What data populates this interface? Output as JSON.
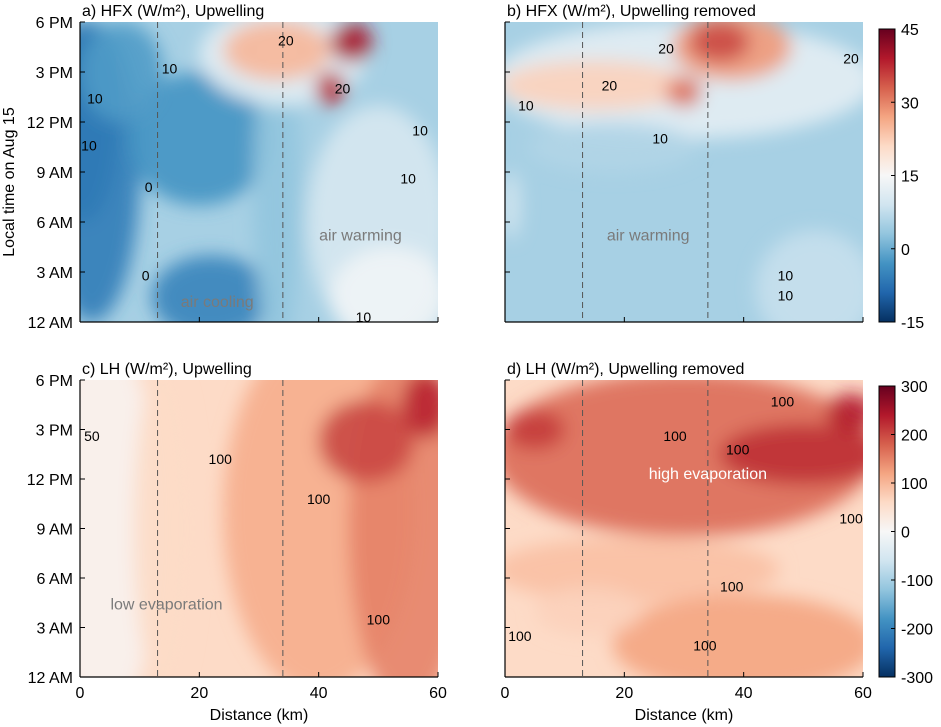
{
  "chart_data": [
    {
      "type": "heatmap",
      "panel": "a",
      "title": "a) HFX (W/m²), Upwelling",
      "ylabel": "Local time on Aug 15",
      "xlabel": "",
      "xlim": [
        0,
        60
      ],
      "ylim": [
        0,
        18
      ],
      "xticks": [
        "0",
        "20",
        "40",
        "60"
      ],
      "yticks": [
        "12 AM",
        "3 AM",
        "6 AM",
        "9 AM",
        "12 PM",
        "3 PM",
        "6 PM"
      ],
      "show_xtick_labels": false,
      "show_ytick_labels": true,
      "colorbar": "hfx",
      "dashed_x": [
        13,
        34
      ],
      "contour_labels": [
        {
          "text": "20",
          "x": 34.5,
          "y": 16.9
        },
        {
          "text": "20",
          "x": 44,
          "y": 14.0
        },
        {
          "text": "10",
          "x": 15,
          "y": 15.2
        },
        {
          "text": "10",
          "x": 2.5,
          "y": 13.4
        },
        {
          "text": "10",
          "x": 1.5,
          "y": 10.6
        },
        {
          "text": "10",
          "x": 57,
          "y": 11.5
        },
        {
          "text": "10",
          "x": 55,
          "y": 8.6
        },
        {
          "text": "10",
          "x": 47.5,
          "y": 0.3
        },
        {
          "text": "0",
          "x": 11.5,
          "y": 8.1
        },
        {
          "text": "0",
          "x": 11,
          "y": 2.8
        }
      ],
      "annotations": [
        {
          "text": "air cooling",
          "x": 23,
          "y": 1.2
        },
        {
          "text": "air warming",
          "x": 47,
          "y": 5.2
        }
      ],
      "regions": [
        {
          "level": -10,
          "x": 0.5,
          "y": 12,
          "rx": 6,
          "ry": 6
        },
        {
          "level": -6,
          "x": 2,
          "y": 9,
          "rx": 8,
          "ry": 9
        },
        {
          "level": -5,
          "x": 22,
          "y": 1.5,
          "rx": 10,
          "ry": 2.5
        },
        {
          "level": -3,
          "x": 20,
          "y": 11,
          "rx": 12,
          "ry": 4
        },
        {
          "level": -2,
          "x": 7,
          "y": 15,
          "rx": 7,
          "ry": 3
        },
        {
          "level": 3,
          "x": 33,
          "y": 8,
          "rx": 4,
          "ry": 10
        },
        {
          "level": 10,
          "x": 50,
          "y": 6,
          "rx": 12,
          "ry": 7
        },
        {
          "level": 14,
          "x": 52,
          "y": 1.5,
          "rx": 10,
          "ry": 3
        },
        {
          "level": 12,
          "x": 34,
          "y": 16,
          "rx": 14,
          "ry": 3
        },
        {
          "level": 25,
          "x": 33,
          "y": 16.3,
          "rx": 9,
          "ry": 1.8
        },
        {
          "level": 40,
          "x": 45.5,
          "y": 16.8,
          "rx": 3.5,
          "ry": 1.2
        },
        {
          "level": 38,
          "x": 42,
          "y": 14.0,
          "rx": 2.5,
          "ry": 1.0
        }
      ]
    },
    {
      "type": "heatmap",
      "panel": "b",
      "title": "b) HFX (W/m²), Upwelling removed",
      "ylabel": "",
      "xlabel": "",
      "xlim": [
        0,
        60
      ],
      "ylim": [
        0,
        18
      ],
      "xticks": [
        "0",
        "20",
        "40",
        "60"
      ],
      "yticks": [
        "12 AM",
        "3 AM",
        "6 AM",
        "9 AM",
        "12 PM",
        "3 PM",
        "6 PM"
      ],
      "show_xtick_labels": false,
      "show_ytick_labels": false,
      "colorbar": "hfx",
      "dashed_x": [
        13,
        34
      ],
      "contour_labels": [
        {
          "text": "20",
          "x": 27,
          "y": 16.4
        },
        {
          "text": "20",
          "x": 17.5,
          "y": 14.2
        },
        {
          "text": "20",
          "x": 58,
          "y": 15.8
        },
        {
          "text": "10",
          "x": 3.5,
          "y": 13.0
        },
        {
          "text": "10",
          "x": 26,
          "y": 11.0
        },
        {
          "text": "10",
          "x": 47,
          "y": 2.8
        },
        {
          "text": "10",
          "x": 47,
          "y": 1.6
        }
      ],
      "annotations": [
        {
          "text": "air warming",
          "x": 24,
          "y": 5.2
        }
      ],
      "regions": [
        {
          "level": 12,
          "x": 30,
          "y": 14.5,
          "rx": 32,
          "ry": 3.5
        },
        {
          "level": 22,
          "x": 15,
          "y": 14.2,
          "rx": 16,
          "ry": 1.5
        },
        {
          "level": 28,
          "x": 38,
          "y": 16.5,
          "rx": 10,
          "ry": 2
        },
        {
          "level": 35,
          "x": 36,
          "y": 16.8,
          "rx": 5,
          "ry": 1.2
        },
        {
          "level": 32,
          "x": 30,
          "y": 13.8,
          "rx": 3,
          "ry": 0.9
        },
        {
          "level": 10,
          "x": 1,
          "y": 7,
          "rx": 1.5,
          "ry": 2
        },
        {
          "level": 8,
          "x": 52,
          "y": 2,
          "rx": 10,
          "ry": 3.5
        },
        {
          "level": 6,
          "x": 18,
          "y": 10.5,
          "rx": 14,
          "ry": 1.5
        }
      ]
    },
    {
      "type": "heatmap",
      "panel": "c",
      "title": "c) LH (W/m²), Upwelling",
      "ylabel": "",
      "xlabel": "Distance (km)",
      "xlim": [
        0,
        60
      ],
      "ylim": [
        0,
        18
      ],
      "xticks": [
        "0",
        "20",
        "40",
        "60"
      ],
      "yticks": [
        "12 AM",
        "3 AM",
        "6 AM",
        "9 AM",
        "12 PM",
        "3 PM",
        "6 PM"
      ],
      "show_xtick_labels": true,
      "show_ytick_labels": true,
      "colorbar": "lh",
      "dashed_x": [
        13,
        34
      ],
      "contour_labels": [
        {
          "text": "50",
          "x": 2,
          "y": 14.6
        },
        {
          "text": "100",
          "x": 23.5,
          "y": 13.2
        },
        {
          "text": "100",
          "x": 40,
          "y": 10.8
        },
        {
          "text": "100",
          "x": 50,
          "y": 3.5
        }
      ],
      "annotations": [
        {
          "text": "low evaporation",
          "x": 14.5,
          "y": 4.4
        }
      ],
      "regions": [
        {
          "level": 10,
          "x": 4,
          "y": 9,
          "rx": 9,
          "ry": 12
        },
        {
          "level": 60,
          "x": 14,
          "y": 9,
          "rx": 5,
          "ry": 10
        },
        {
          "level": 110,
          "x": 40,
          "y": 10,
          "rx": 16,
          "ry": 11
        },
        {
          "level": 150,
          "x": 55,
          "y": 9,
          "rx": 10,
          "ry": 11
        },
        {
          "level": 200,
          "x": 48,
          "y": 14.3,
          "rx": 8,
          "ry": 2.5
        },
        {
          "level": 230,
          "x": 58,
          "y": 16.5,
          "rx": 4,
          "ry": 2
        }
      ]
    },
    {
      "type": "heatmap",
      "panel": "d",
      "title": "d) LH (W/m²), Upwelling removed",
      "ylabel": "",
      "xlabel": "Distance (km)",
      "xlim": [
        0,
        60
      ],
      "ylim": [
        0,
        18
      ],
      "xticks": [
        "0",
        "20",
        "40",
        "60"
      ],
      "yticks": [
        "12 AM",
        "3 AM",
        "6 AM",
        "9 AM",
        "12 PM",
        "3 PM",
        "6 PM"
      ],
      "show_xtick_labels": true,
      "show_ytick_labels": false,
      "colorbar": "lh",
      "dashed_x": [
        13,
        34
      ],
      "contour_labels": [
        {
          "text": "100",
          "x": 46.5,
          "y": 16.7
        },
        {
          "text": "100",
          "x": 28.5,
          "y": 14.6
        },
        {
          "text": "100",
          "x": 39,
          "y": 13.8
        },
        {
          "text": "100",
          "x": 58,
          "y": 9.6
        },
        {
          "text": "100",
          "x": 38,
          "y": 5.5
        },
        {
          "text": "100",
          "x": 2.5,
          "y": 2.5
        },
        {
          "text": "100",
          "x": 33.5,
          "y": 1.9
        }
      ],
      "annotations": [
        {
          "text": "high evaporation",
          "x": 34,
          "y": 12.3
        }
      ],
      "regions": [
        {
          "level": 170,
          "x": 30,
          "y": 13.5,
          "rx": 32,
          "ry": 5
        },
        {
          "level": 220,
          "x": 50,
          "y": 13.5,
          "rx": 14,
          "ry": 1.8
        },
        {
          "level": 210,
          "x": 5,
          "y": 15,
          "rx": 5,
          "ry": 1.2
        },
        {
          "level": 240,
          "x": 58,
          "y": 16,
          "rx": 4,
          "ry": 1.2
        },
        {
          "level": 90,
          "x": 22,
          "y": 6.5,
          "rx": 24,
          "ry": 2
        },
        {
          "level": 120,
          "x": 40,
          "y": 2,
          "rx": 22,
          "ry": 3
        },
        {
          "level": 70,
          "x": 14,
          "y": 4,
          "rx": 9,
          "ry": 1.5
        }
      ]
    }
  ],
  "colorbars": {
    "hfx": {
      "min": -15,
      "max": 45,
      "ticks": [
        "45",
        "30",
        "15",
        "0",
        "-15"
      ]
    },
    "lh": {
      "min": -300,
      "max": 300,
      "ticks": [
        "300",
        "200",
        "100",
        "0",
        "-100",
        "-200",
        "-300"
      ]
    }
  }
}
